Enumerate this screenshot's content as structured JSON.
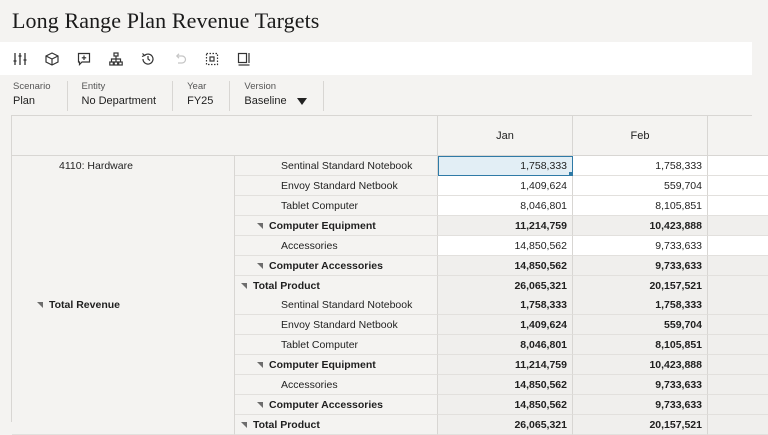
{
  "page": {
    "title": "Long Range Plan Revenue Targets"
  },
  "toolbar": {
    "buttons": [
      {
        "name": "adjust-icon"
      },
      {
        "name": "cube-icon"
      },
      {
        "name": "comment-icon"
      },
      {
        "name": "hierarchy-icon"
      },
      {
        "name": "history-icon"
      },
      {
        "name": "undo-icon"
      },
      {
        "name": "grid-icon"
      },
      {
        "name": "layout-icon"
      }
    ]
  },
  "pov": {
    "items": [
      {
        "label": "Scenario",
        "value": "Plan"
      },
      {
        "label": "Entity",
        "value": "No Department"
      },
      {
        "label": "Year",
        "value": "FY25"
      },
      {
        "label": "Version",
        "value": "Baseline"
      }
    ]
  },
  "grid": {
    "columns": [
      "Jan",
      "Feb"
    ],
    "groups": [
      {
        "label": "4110: Hardware",
        "collapsible": false,
        "rows": [
          {
            "label": "Sentinal Standard Notebook",
            "level": 2,
            "bold": false,
            "values": [
              "1,758,333",
              "1,758,333"
            ]
          },
          {
            "label": "Envoy Standard Netbook",
            "level": 2,
            "bold": false,
            "values": [
              "1,409,624",
              "559,704"
            ]
          },
          {
            "label": "Tablet Computer",
            "level": 2,
            "bold": false,
            "values": [
              "8,046,801",
              "8,105,851"
            ]
          },
          {
            "label": "Computer Equipment",
            "level": 1,
            "bold": true,
            "values": [
              "11,214,759",
              "10,423,888"
            ]
          },
          {
            "label": "Accessories",
            "level": 2,
            "bold": false,
            "values": [
              "14,850,562",
              "9,733,633"
            ]
          },
          {
            "label": "Computer Accessories",
            "level": 1,
            "bold": true,
            "values": [
              "14,850,562",
              "9,733,633"
            ]
          },
          {
            "label": "Total Product",
            "level": 0,
            "bold": true,
            "values": [
              "26,065,321",
              "20,157,521"
            ]
          }
        ]
      },
      {
        "label": "Total Revenue",
        "collapsible": true,
        "rows": [
          {
            "label": "Sentinal Standard Notebook",
            "level": 2,
            "bold": false,
            "values": [
              "1,758,333",
              "1,758,333"
            ]
          },
          {
            "label": "Envoy Standard Netbook",
            "level": 2,
            "bold": false,
            "values": [
              "1,409,624",
              "559,704"
            ]
          },
          {
            "label": "Tablet Computer",
            "level": 2,
            "bold": false,
            "values": [
              "8,046,801",
              "8,105,851"
            ]
          },
          {
            "label": "Computer Equipment",
            "level": 1,
            "bold": true,
            "values": [
              "11,214,759",
              "10,423,888"
            ]
          },
          {
            "label": "Accessories",
            "level": 2,
            "bold": false,
            "values": [
              "14,850,562",
              "9,733,633"
            ]
          },
          {
            "label": "Computer Accessories",
            "level": 1,
            "bold": true,
            "values": [
              "14,850,562",
              "9,733,633"
            ]
          },
          {
            "label": "Total Product",
            "level": 0,
            "bold": true,
            "values": [
              "26,065,321",
              "20,157,521"
            ]
          }
        ]
      }
    ]
  }
}
